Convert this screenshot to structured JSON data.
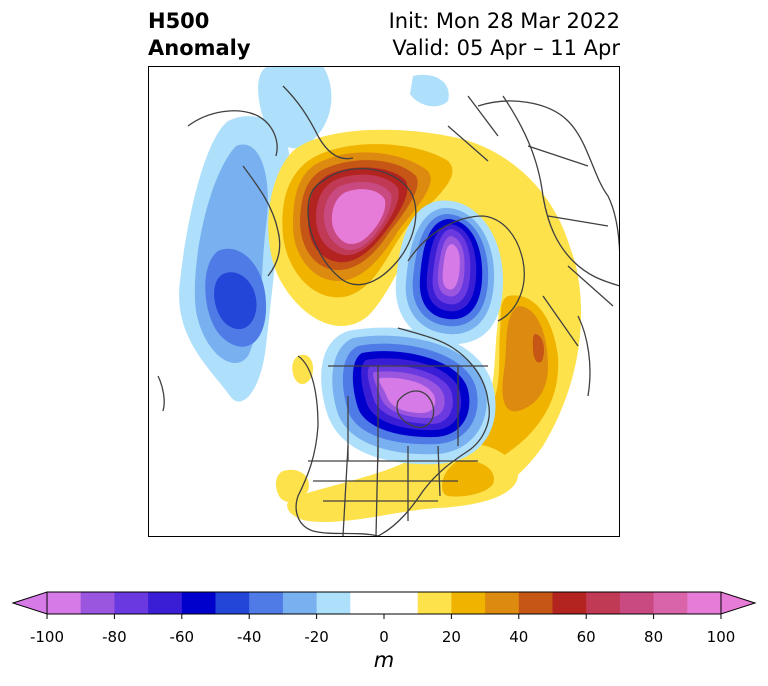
{
  "title": {
    "left_line1": "H500",
    "left_line2": "Anomaly",
    "right_line1": "Init: Mon 28 Mar 2022",
    "right_line2": "Valid: 05 Apr – 11 Apr"
  },
  "map": {
    "projection": "polar stereographic (North Pole)",
    "fields": [
      {
        "name": "positive-anomaly-greenland-arctic",
        "peak": 90
      },
      {
        "name": "negative-anomaly-siberia",
        "peak": -100
      },
      {
        "name": "negative-anomaly-canada",
        "peak": -100
      },
      {
        "name": "negative-anomaly-north-pacific",
        "peak": -60
      },
      {
        "name": "positive-anomaly-eastern-siberia",
        "peak": 50
      },
      {
        "name": "positive-anomaly-atlantic",
        "peak": 30
      }
    ]
  },
  "colorbar": {
    "unit": "m",
    "ticks": [
      "-100",
      "-80",
      "-60",
      "-40",
      "-20",
      "0",
      "20",
      "40",
      "60",
      "80",
      "100"
    ],
    "colors": [
      "#d67ae8",
      "#9b56e0",
      "#6a3ae0",
      "#3a1ed6",
      "#0000cc",
      "#2446d8",
      "#4f7be6",
      "#79b1f0",
      "#aee0fb",
      "#ffffff",
      "#ffffff",
      "#fde24c",
      "#f0b300",
      "#dd8a10",
      "#c55615",
      "#b32320",
      "#c03a55",
      "#c84a80",
      "#d964aa",
      "#e77cd8"
    ],
    "extend": "both"
  }
}
